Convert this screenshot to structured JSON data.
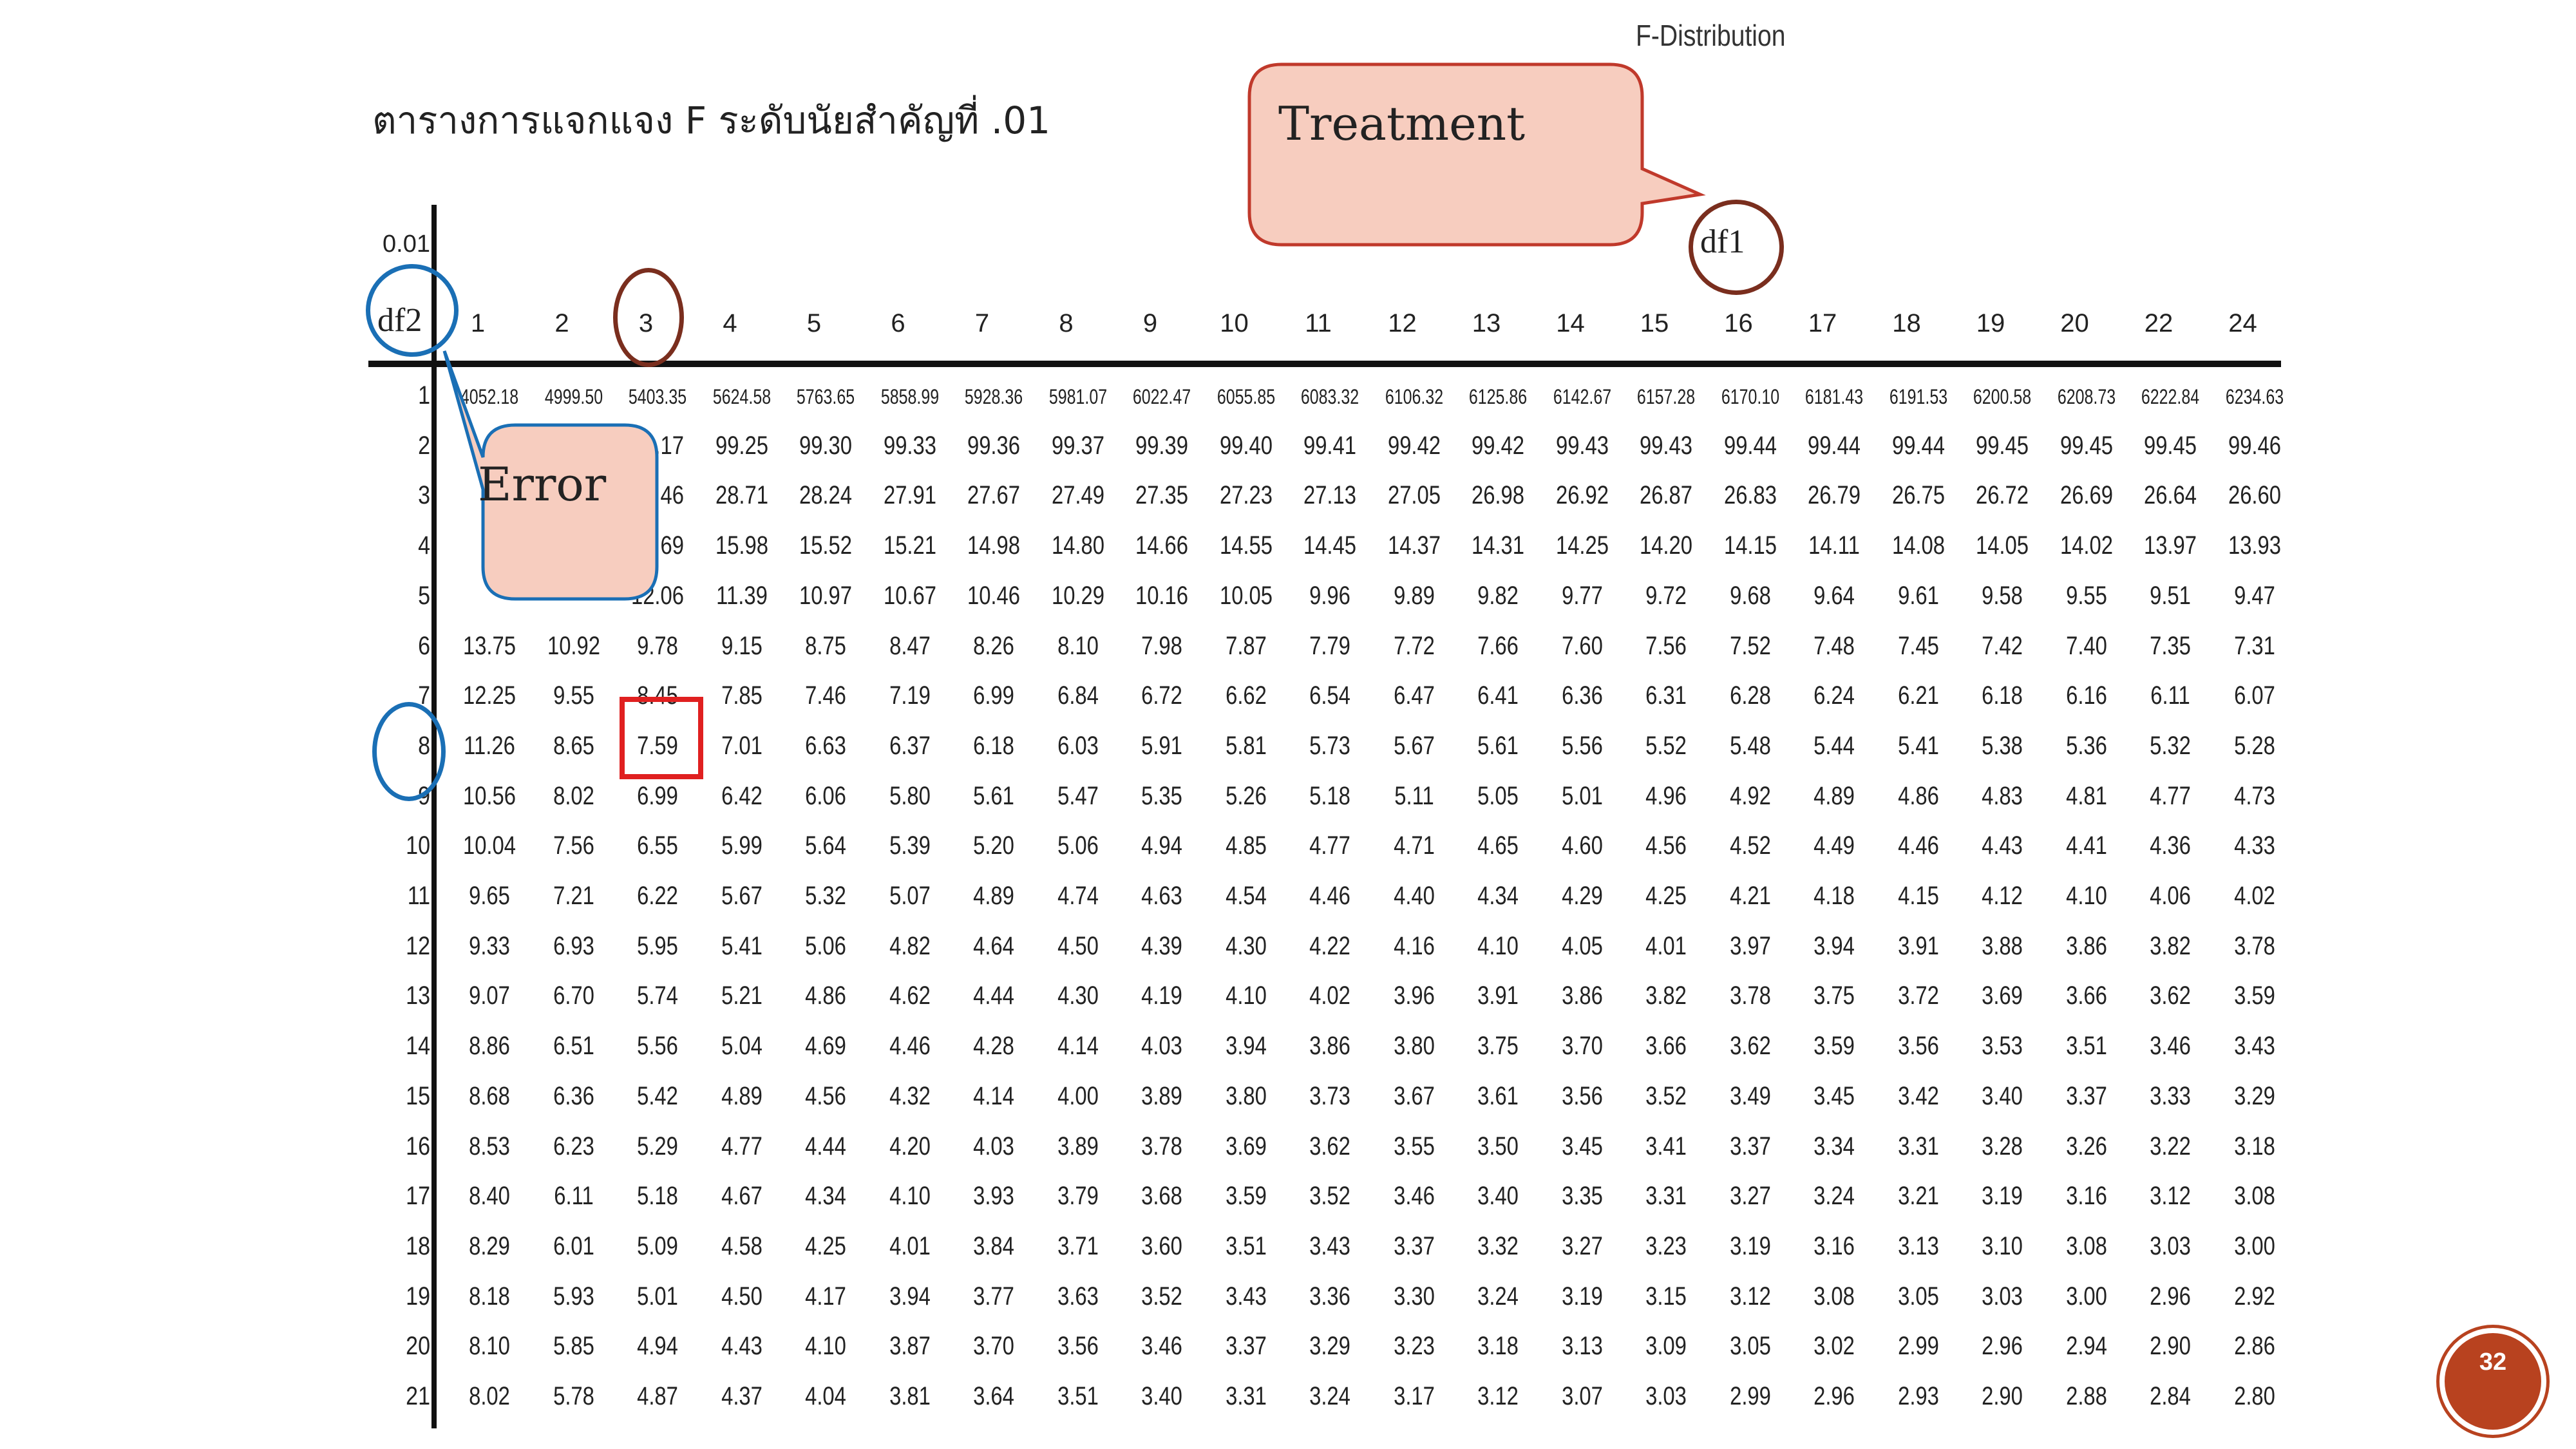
{
  "header": {
    "subject": "F-Distribution",
    "table_title": "ตารางการแจกแจง F ระดับนัยสำคัญที่ .01"
  },
  "table": {
    "alpha": "0.01",
    "row_axis_label": "df2",
    "col_axis_label": "df1",
    "columns": [
      "1",
      "2",
      "3",
      "4",
      "5",
      "6",
      "7",
      "8",
      "9",
      "10",
      "11",
      "12",
      "13",
      "14",
      "15",
      "16",
      "17",
      "18",
      "19",
      "20",
      "22",
      "24"
    ],
    "rows": [
      {
        "df2": "1",
        "values": [
          "4052.18",
          "4999.50",
          "5403.35",
          "5624.58",
          "5763.65",
          "5858.99",
          "5928.36",
          "5981.07",
          "6022.47",
          "6055.85",
          "6083.32",
          "6106.32",
          "6125.86",
          "6142.67",
          "6157.28",
          "6170.10",
          "6181.43",
          "6191.53",
          "6200.58",
          "6208.73",
          "6222.84",
          "6234.63"
        ]
      },
      {
        "df2": "2",
        "values": [
          "",
          "",
          "99.17",
          "99.25",
          "99.30",
          "99.33",
          "99.36",
          "99.37",
          "99.39",
          "99.40",
          "99.41",
          "99.42",
          "99.42",
          "99.43",
          "99.43",
          "99.44",
          "99.44",
          "99.44",
          "99.45",
          "99.45",
          "99.45",
          "99.46"
        ]
      },
      {
        "df2": "3",
        "values": [
          "",
          "",
          "29.46",
          "28.71",
          "28.24",
          "27.91",
          "27.67",
          "27.49",
          "27.35",
          "27.23",
          "27.13",
          "27.05",
          "26.98",
          "26.92",
          "26.87",
          "26.83",
          "26.79",
          "26.75",
          "26.72",
          "26.69",
          "26.64",
          "26.60"
        ]
      },
      {
        "df2": "4",
        "values": [
          "",
          "",
          "16.69",
          "15.98",
          "15.52",
          "15.21",
          "14.98",
          "14.80",
          "14.66",
          "14.55",
          "14.45",
          "14.37",
          "14.31",
          "14.25",
          "14.20",
          "14.15",
          "14.11",
          "14.08",
          "14.05",
          "14.02",
          "13.97",
          "13.93"
        ]
      },
      {
        "df2": "5",
        "values": [
          "",
          "",
          "12.06",
          "11.39",
          "10.97",
          "10.67",
          "10.46",
          "10.29",
          "10.16",
          "10.05",
          "9.96",
          "9.89",
          "9.82",
          "9.77",
          "9.72",
          "9.68",
          "9.64",
          "9.61",
          "9.58",
          "9.55",
          "9.51",
          "9.47"
        ]
      },
      {
        "df2": "6",
        "values": [
          "13.75",
          "10.92",
          "9.78",
          "9.15",
          "8.75",
          "8.47",
          "8.26",
          "8.10",
          "7.98",
          "7.87",
          "7.79",
          "7.72",
          "7.66",
          "7.60",
          "7.56",
          "7.52",
          "7.48",
          "7.45",
          "7.42",
          "7.40",
          "7.35",
          "7.31"
        ]
      },
      {
        "df2": "7",
        "values": [
          "12.25",
          "9.55",
          "8.45",
          "7.85",
          "7.46",
          "7.19",
          "6.99",
          "6.84",
          "6.72",
          "6.62",
          "6.54",
          "6.47",
          "6.41",
          "6.36",
          "6.31",
          "6.28",
          "6.24",
          "6.21",
          "6.18",
          "6.16",
          "6.11",
          "6.07"
        ]
      },
      {
        "df2": "8",
        "values": [
          "11.26",
          "8.65",
          "7.59",
          "7.01",
          "6.63",
          "6.37",
          "6.18",
          "6.03",
          "5.91",
          "5.81",
          "5.73",
          "5.67",
          "5.61",
          "5.56",
          "5.52",
          "5.48",
          "5.44",
          "5.41",
          "5.38",
          "5.36",
          "5.32",
          "5.28"
        ]
      },
      {
        "df2": "9",
        "values": [
          "10.56",
          "8.02",
          "6.99",
          "6.42",
          "6.06",
          "5.80",
          "5.61",
          "5.47",
          "5.35",
          "5.26",
          "5.18",
          "5.11",
          "5.05",
          "5.01",
          "4.96",
          "4.92",
          "4.89",
          "4.86",
          "4.83",
          "4.81",
          "4.77",
          "4.73"
        ]
      },
      {
        "df2": "10",
        "values": [
          "10.04",
          "7.56",
          "6.55",
          "5.99",
          "5.64",
          "5.39",
          "5.20",
          "5.06",
          "4.94",
          "4.85",
          "4.77",
          "4.71",
          "4.65",
          "4.60",
          "4.56",
          "4.52",
          "4.49",
          "4.46",
          "4.43",
          "4.41",
          "4.36",
          "4.33"
        ]
      },
      {
        "df2": "11",
        "values": [
          "9.65",
          "7.21",
          "6.22",
          "5.67",
          "5.32",
          "5.07",
          "4.89",
          "4.74",
          "4.63",
          "4.54",
          "4.46",
          "4.40",
          "4.34",
          "4.29",
          "4.25",
          "4.21",
          "4.18",
          "4.15",
          "4.12",
          "4.10",
          "4.06",
          "4.02"
        ]
      },
      {
        "df2": "12",
        "values": [
          "9.33",
          "6.93",
          "5.95",
          "5.41",
          "5.06",
          "4.82",
          "4.64",
          "4.50",
          "4.39",
          "4.30",
          "4.22",
          "4.16",
          "4.10",
          "4.05",
          "4.01",
          "3.97",
          "3.94",
          "3.91",
          "3.88",
          "3.86",
          "3.82",
          "3.78"
        ]
      },
      {
        "df2": "13",
        "values": [
          "9.07",
          "6.70",
          "5.74",
          "5.21",
          "4.86",
          "4.62",
          "4.44",
          "4.30",
          "4.19",
          "4.10",
          "4.02",
          "3.96",
          "3.91",
          "3.86",
          "3.82",
          "3.78",
          "3.75",
          "3.72",
          "3.69",
          "3.66",
          "3.62",
          "3.59"
        ]
      },
      {
        "df2": "14",
        "values": [
          "8.86",
          "6.51",
          "5.56",
          "5.04",
          "4.69",
          "4.46",
          "4.28",
          "4.14",
          "4.03",
          "3.94",
          "3.86",
          "3.80",
          "3.75",
          "3.70",
          "3.66",
          "3.62",
          "3.59",
          "3.56",
          "3.53",
          "3.51",
          "3.46",
          "3.43"
        ]
      },
      {
        "df2": "15",
        "values": [
          "8.68",
          "6.36",
          "5.42",
          "4.89",
          "4.56",
          "4.32",
          "4.14",
          "4.00",
          "3.89",
          "3.80",
          "3.73",
          "3.67",
          "3.61",
          "3.56",
          "3.52",
          "3.49",
          "3.45",
          "3.42",
          "3.40",
          "3.37",
          "3.33",
          "3.29"
        ]
      },
      {
        "df2": "16",
        "values": [
          "8.53",
          "6.23",
          "5.29",
          "4.77",
          "4.44",
          "4.20",
          "4.03",
          "3.89",
          "3.78",
          "3.69",
          "3.62",
          "3.55",
          "3.50",
          "3.45",
          "3.41",
          "3.37",
          "3.34",
          "3.31",
          "3.28",
          "3.26",
          "3.22",
          "3.18"
        ]
      },
      {
        "df2": "17",
        "values": [
          "8.40",
          "6.11",
          "5.18",
          "4.67",
          "4.34",
          "4.10",
          "3.93",
          "3.79",
          "3.68",
          "3.59",
          "3.52",
          "3.46",
          "3.40",
          "3.35",
          "3.31",
          "3.27",
          "3.24",
          "3.21",
          "3.19",
          "3.16",
          "3.12",
          "3.08"
        ]
      },
      {
        "df2": "18",
        "values": [
          "8.29",
          "6.01",
          "5.09",
          "4.58",
          "4.25",
          "4.01",
          "3.84",
          "3.71",
          "3.60",
          "3.51",
          "3.43",
          "3.37",
          "3.32",
          "3.27",
          "3.23",
          "3.19",
          "3.16",
          "3.13",
          "3.10",
          "3.08",
          "3.03",
          "3.00"
        ]
      },
      {
        "df2": "19",
        "values": [
          "8.18",
          "5.93",
          "5.01",
          "4.50",
          "4.17",
          "3.94",
          "3.77",
          "3.63",
          "3.52",
          "3.43",
          "3.36",
          "3.30",
          "3.24",
          "3.19",
          "3.15",
          "3.12",
          "3.08",
          "3.05",
          "3.03",
          "3.00",
          "2.96",
          "2.92"
        ]
      },
      {
        "df2": "20",
        "values": [
          "8.10",
          "5.85",
          "4.94",
          "4.43",
          "4.10",
          "3.87",
          "3.70",
          "3.56",
          "3.46",
          "3.37",
          "3.29",
          "3.23",
          "3.18",
          "3.13",
          "3.09",
          "3.05",
          "3.02",
          "2.99",
          "2.96",
          "2.94",
          "2.90",
          "2.86"
        ]
      },
      {
        "df2": "21",
        "values": [
          "8.02",
          "5.78",
          "4.87",
          "4.37",
          "4.04",
          "3.81",
          "3.64",
          "3.51",
          "3.40",
          "3.31",
          "3.24",
          "3.17",
          "3.12",
          "3.07",
          "3.03",
          "2.99",
          "2.96",
          "2.93",
          "2.90",
          "2.88",
          "2.84",
          "2.80"
        ]
      }
    ]
  },
  "annotations": {
    "treatment_callout": "Treatment",
    "error_callout": "Error",
    "highlighted_value": "7.59"
  },
  "colors": {
    "callout_fill": "#f7cdbf",
    "callout_border": "#c0392b",
    "blue_circle": "#1a6fb5",
    "brown_circle": "#7a2e1e",
    "highlight_box": "#e02020",
    "page_badge": "#b8421f"
  },
  "footer": {
    "page_number": "32"
  }
}
